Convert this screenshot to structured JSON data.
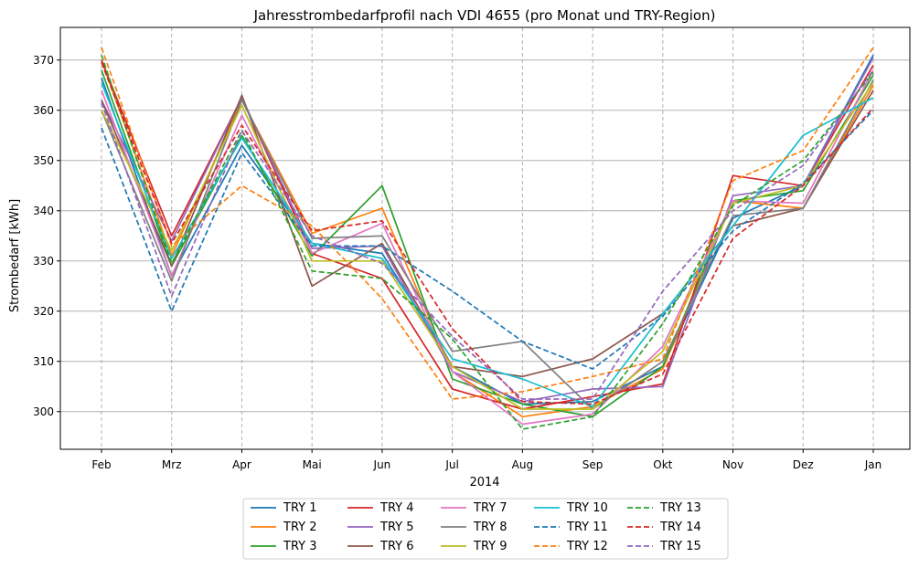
{
  "chart_data": {
    "type": "line",
    "title": "Jahresstrombedarfprofil nach VDI 4655 (pro Monat und TRY-Region)",
    "xlabel": "2014",
    "ylabel": "Strombedarf [kWh]",
    "categories": [
      "Feb",
      "Mrz",
      "Apr",
      "Mai",
      "Jun",
      "Jul",
      "Aug",
      "Sep",
      "Okt",
      "Nov",
      "Dez",
      "Jan"
    ],
    "ylim": [
      292.5,
      376.5
    ],
    "yticks": [
      300,
      310,
      320,
      330,
      340,
      350,
      360,
      370
    ],
    "grid": {
      "horizontal": "solid",
      "vertical": "dashed"
    },
    "legend": {
      "placement": "bottom-center",
      "columns": 5
    },
    "series": [
      {
        "name": "TRY 1",
        "color": "#1f77b4",
        "dash": "solid",
        "values": [
          366.5,
          327.0,
          353.0,
          333.5,
          331.5,
          309.0,
          301.5,
          302.0,
          309.0,
          338.5,
          345.0,
          371.0
        ]
      },
      {
        "name": "TRY 2",
        "color": "#ff7f0e",
        "dash": "solid",
        "values": [
          370.0,
          331.0,
          362.0,
          335.5,
          340.5,
          308.0,
          299.0,
          301.0,
          308.5,
          342.0,
          340.5,
          365.0
        ]
      },
      {
        "name": "TRY 3",
        "color": "#2ca02c",
        "dash": "solid",
        "values": [
          368.0,
          329.0,
          355.0,
          331.0,
          345.0,
          306.5,
          301.5,
          299.0,
          309.0,
          342.0,
          344.0,
          367.0
        ]
      },
      {
        "name": "TRY 4",
        "color": "#d62728",
        "dash": "solid",
        "values": [
          370.0,
          335.0,
          362.5,
          331.5,
          326.5,
          304.5,
          300.5,
          303.0,
          305.5,
          347.0,
          345.0,
          369.0
        ]
      },
      {
        "name": "TRY 5",
        "color": "#9467bd",
        "dash": "solid",
        "values": [
          362.0,
          334.0,
          362.5,
          332.5,
          333.0,
          308.0,
          302.0,
          304.5,
          305.0,
          343.0,
          345.0,
          370.5
        ]
      },
      {
        "name": "TRY 6",
        "color": "#8c564b",
        "dash": "solid",
        "values": [
          362.0,
          329.0,
          363.0,
          325.0,
          333.5,
          309.0,
          307.0,
          310.5,
          319.5,
          337.0,
          340.5,
          364.0
        ]
      },
      {
        "name": "TRY 7",
        "color": "#e377c2",
        "dash": "solid",
        "values": [
          364.0,
          327.0,
          359.0,
          331.5,
          337.5,
          308.0,
          297.5,
          299.5,
          313.0,
          342.0,
          341.5,
          368.0
        ]
      },
      {
        "name": "TRY 8",
        "color": "#7f7f7f",
        "dash": "solid",
        "values": [
          360.0,
          326.0,
          362.0,
          334.5,
          335.0,
          312.0,
          314.0,
          300.5,
          310.0,
          339.0,
          340.5,
          366.0
        ]
      },
      {
        "name": "TRY 9",
        "color": "#bcbd22",
        "dash": "solid",
        "values": [
          360.0,
          332.0,
          361.0,
          330.0,
          330.0,
          309.0,
          300.5,
          300.5,
          312.0,
          341.5,
          345.0,
          365.5
        ]
      },
      {
        "name": "TRY 10",
        "color": "#17becf",
        "dash": "solid",
        "values": [
          365.5,
          330.5,
          354.5,
          333.5,
          330.5,
          310.5,
          306.5,
          301.0,
          319.5,
          337.0,
          355.0,
          362.5
        ]
      },
      {
        "name": "TRY 11",
        "color": "#1f77b4",
        "dash": "dashed",
        "values": [
          356.5,
          320.0,
          351.5,
          333.0,
          333.0,
          324.0,
          314.0,
          308.5,
          319.0,
          336.0,
          345.5,
          360.0
        ]
      },
      {
        "name": "TRY 12",
        "color": "#ff7f0e",
        "dash": "dashed",
        "values": [
          372.5,
          333.0,
          345.0,
          337.0,
          322.5,
          302.5,
          304.0,
          307.0,
          310.5,
          346.0,
          352.0,
          372.5
        ]
      },
      {
        "name": "TRY 13",
        "color": "#2ca02c",
        "dash": "dashed",
        "values": [
          371.0,
          329.5,
          356.0,
          328.0,
          326.5,
          314.5,
          296.5,
          299.0,
          317.5,
          341.0,
          350.0,
          367.5
        ]
      },
      {
        "name": "TRY 14",
        "color": "#d62728",
        "dash": "dashed",
        "values": [
          369.5,
          333.5,
          357.0,
          336.0,
          338.0,
          316.5,
          302.0,
          301.5,
          307.5,
          334.5,
          345.0,
          360.5
        ]
      },
      {
        "name": "TRY 15",
        "color": "#9467bd",
        "dash": "dashed",
        "values": [
          361.5,
          323.0,
          356.0,
          335.0,
          329.5,
          315.0,
          302.5,
          302.5,
          324.0,
          340.0,
          349.0,
          368.0
        ]
      }
    ]
  }
}
